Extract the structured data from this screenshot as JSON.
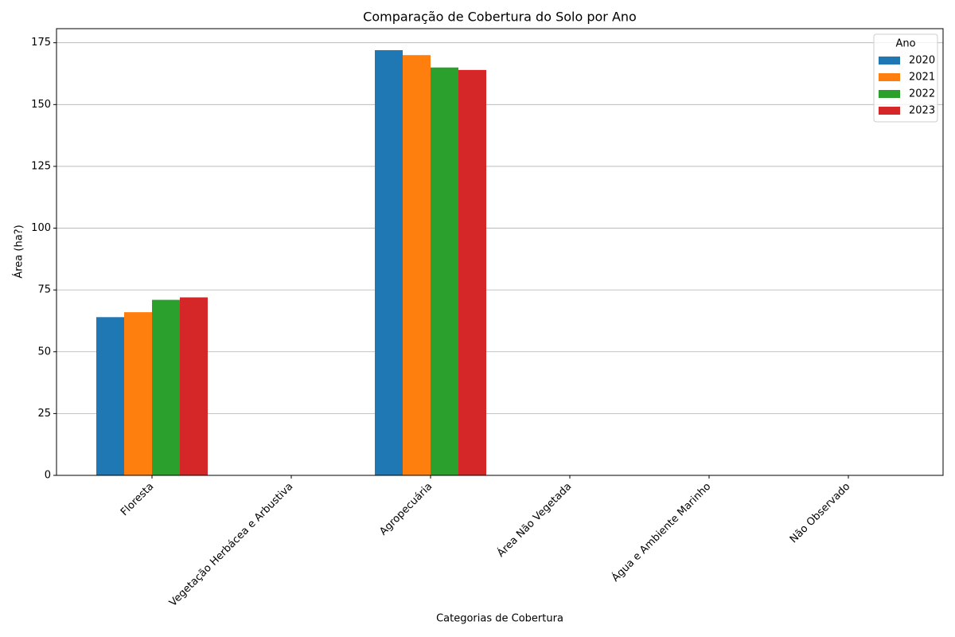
{
  "chart_data": {
    "type": "bar",
    "title": "Comparação de Cobertura do Solo por Ano",
    "xlabel": "Categorias de Cobertura",
    "ylabel": "Área (ha?)",
    "categories": [
      "Floresta",
      "Vegetação Herbácea e Arbustiva",
      "Agropecuária",
      "Área Não Vegetada",
      "Água e Ambiente Marinho",
      "Não Observado"
    ],
    "series": [
      {
        "name": "2020",
        "color": "#1f77b4",
        "values": [
          64,
          0,
          172,
          0,
          0,
          0
        ]
      },
      {
        "name": "2021",
        "color": "#ff7f0e",
        "values": [
          66,
          0,
          170,
          0,
          0,
          0
        ]
      },
      {
        "name": "2022",
        "color": "#2ca02c",
        "values": [
          71,
          0,
          165,
          0,
          0,
          0
        ]
      },
      {
        "name": "2023",
        "color": "#d62728",
        "values": [
          72,
          0,
          164,
          0,
          0,
          0
        ]
      }
    ],
    "legend_title": "Ano",
    "legend": "upper right",
    "ylim": [
      0,
      180.7
    ],
    "yticks": [
      0,
      25,
      50,
      75,
      100,
      125,
      150,
      175
    ],
    "grid": true
  }
}
